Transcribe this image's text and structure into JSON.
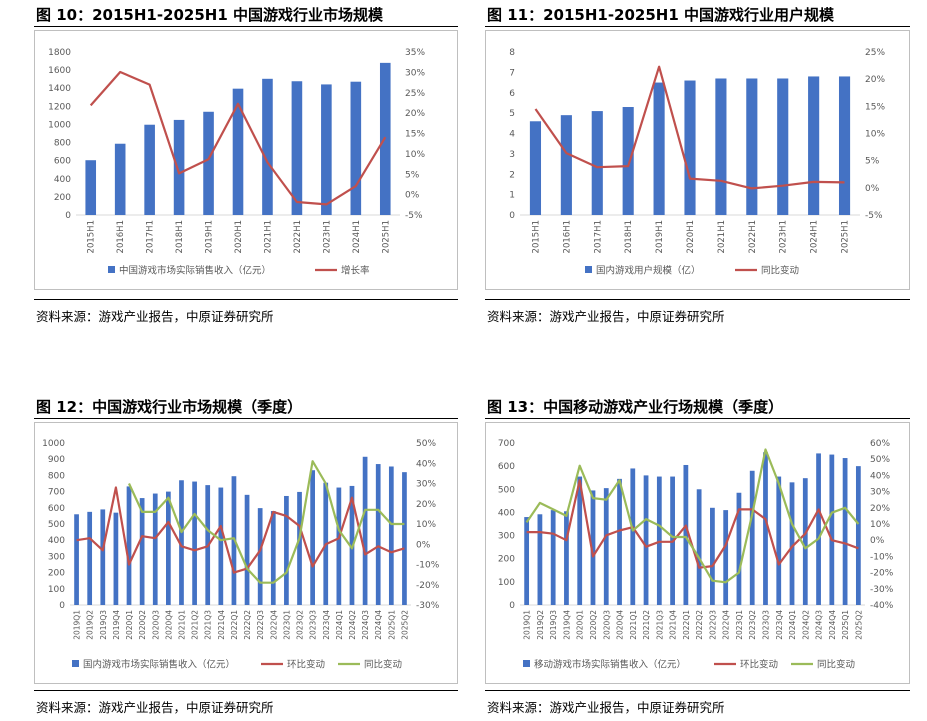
{
  "panels": [
    {
      "title": "图 10：2015H1-2025H1 中国游戏行业市场规模",
      "source": "资料来源：游戏产业报告，中原证券研究所"
    },
    {
      "title": "图 11：2015H1-2025H1 中国游戏行业用户规模",
      "source": "资料来源：游戏产业报告，中原证券研究所"
    },
    {
      "title": "图 12：中国游戏行业市场规模（季度）",
      "source": "资料来源：游戏产业报告，中原证券研究所"
    },
    {
      "title": "图 13：中国移动游戏产业行场规模（季度）",
      "source": "资料来源：游戏产业报告，中原证券研究所"
    }
  ],
  "colors": {
    "bar": "#4472C4",
    "line_red": "#C0504D",
    "line_green": "#9BBB59",
    "axis": "#D9D9D9",
    "frame": "#BFBFBF"
  },
  "chart_data": [
    {
      "type": "bar",
      "categories": [
        "2015H1",
        "2016H1",
        "2017H1",
        "2018H1",
        "2019H1",
        "2020H1",
        "2021H1",
        "2022H1",
        "2023H1",
        "2024H1",
        "2025H1"
      ],
      "series": [
        {
          "name": "中国游戏市场实际销售收入（亿元）",
          "type": "bar",
          "axis": "left",
          "values": [
            605,
            787,
            997,
            1050,
            1140,
            1395,
            1504,
            1477,
            1442,
            1472,
            1680
          ]
        },
        {
          "name": "增长率",
          "type": "line",
          "axis": "right",
          "values": [
            21.9,
            30.1,
            27.0,
            5.2,
            8.7,
            22.3,
            7.9,
            -1.8,
            -2.4,
            2.1,
            14.1
          ]
        }
      ],
      "ylim_left": [
        0,
        1800
      ],
      "yticks_left": [
        "0",
        "200",
        "400",
        "600",
        "800",
        "1000",
        "1200",
        "1400",
        "1600",
        "1800"
      ],
      "ylim_right": [
        -5,
        35
      ],
      "yticks_right": [
        "-5%",
        "0%",
        "5%",
        "10%",
        "15%",
        "20%",
        "25%",
        "30%",
        "35%"
      ],
      "legend": "bottom"
    },
    {
      "type": "bar",
      "categories": [
        "2015H1",
        "2016H1",
        "2017H1",
        "2018H1",
        "2019H1",
        "2020H1",
        "2021H1",
        "2022H1",
        "2023H1",
        "2024H1",
        "2025H1"
      ],
      "series": [
        {
          "name": "国内游戏用户规模（亿）",
          "type": "bar",
          "axis": "left",
          "values": [
            4.6,
            4.9,
            5.1,
            5.3,
            6.5,
            6.6,
            6.7,
            6.7,
            6.7,
            6.8,
            6.8
          ]
        },
        {
          "name": "同比变动",
          "type": "line",
          "axis": "right",
          "values": [
            14.5,
            6.4,
            3.8,
            4.0,
            22.3,
            1.7,
            1.3,
            -0.1,
            0.4,
            1.1,
            1.0
          ]
        }
      ],
      "ylim_left": [
        0,
        8
      ],
      "yticks_left": [
        "0",
        "1",
        "2",
        "3",
        "4",
        "5",
        "6",
        "7",
        "8"
      ],
      "ylim_right": [
        -5,
        25
      ],
      "yticks_right": [
        "-5%",
        "0%",
        "5%",
        "10%",
        "15%",
        "20%",
        "25%"
      ],
      "legend": "bottom"
    },
    {
      "type": "bar",
      "categories": [
        "2019Q1",
        "2019Q2",
        "2019Q3",
        "2019Q4",
        "2020Q1",
        "2020Q2",
        "2020Q3",
        "2020Q4",
        "2021Q1",
        "2021Q2",
        "2021Q3",
        "2021Q4",
        "2022Q1",
        "2022Q2",
        "2022Q3",
        "2022Q4",
        "2023Q1",
        "2023Q2",
        "2023Q3",
        "2023Q4",
        "2024Q1",
        "2024Q2",
        "2024Q3",
        "2024Q4",
        "2025Q1",
        "2025Q2"
      ],
      "series": [
        {
          "name": "国内游戏市场实际销售收入（亿元）",
          "type": "bar",
          "axis": "left",
          "values": [
            560,
            575,
            590,
            570,
            732,
            660,
            688,
            700,
            770,
            762,
            740,
            725,
            795,
            680,
            598,
            580,
            673,
            698,
            832,
            755,
            725,
            735,
            915,
            870,
            855,
            820
          ]
        },
        {
          "name": "环比变动",
          "type": "line",
          "axis": "right",
          "values": [
            2,
            3,
            -3,
            28,
            -10,
            4,
            3,
            11,
            -1,
            -3,
            -1,
            9,
            -14,
            -12,
            -3,
            16,
            14,
            9,
            -11,
            0,
            3,
            23,
            -5,
            -1,
            -4,
            -2
          ]
        },
        {
          "name": "同比变动",
          "type": "line",
          "axis": "right",
          "values": [
            null,
            null,
            null,
            null,
            30,
            16,
            16,
            23,
            6,
            15,
            7,
            2,
            3,
            -12,
            -19,
            -19,
            -14,
            3,
            41,
            30,
            7,
            -2,
            17,
            17,
            10,
            10
          ]
        }
      ],
      "ylim_left": [
        0,
        1000
      ],
      "yticks_left": [
        "0",
        "100",
        "200",
        "300",
        "400",
        "500",
        "600",
        "700",
        "800",
        "900",
        "1000"
      ],
      "ylim_right": [
        -30,
        50
      ],
      "yticks_right": [
        "-30%",
        "-20%",
        "-10%",
        "0%",
        "10%",
        "20%",
        "30%",
        "40%",
        "50%"
      ],
      "legend": "bottom"
    },
    {
      "type": "bar",
      "categories": [
        "2019Q1",
        "2019Q2",
        "2019Q3",
        "2019Q4",
        "2020Q1",
        "2020Q2",
        "2020Q3",
        "2020Q4",
        "2021Q1",
        "2021Q2",
        "2021Q3",
        "2021Q4",
        "2022Q1",
        "2022Q2",
        "2022Q3",
        "2022Q4",
        "2023Q1",
        "2023Q2",
        "2023Q3",
        "2023Q4",
        "2024Q1",
        "2024Q2",
        "2024Q3",
        "2024Q4",
        "2025Q1",
        "2025Q2"
      ],
      "series": [
        {
          "name": "移动游戏市场实际销售收入（亿元）",
          "type": "bar",
          "axis": "left",
          "values": [
            380,
            392,
            410,
            405,
            555,
            495,
            505,
            545,
            590,
            560,
            555,
            555,
            605,
            500,
            420,
            410,
            485,
            580,
            660,
            555,
            530,
            548,
            655,
            650,
            635,
            600
          ]
        },
        {
          "name": "环比变动",
          "type": "line",
          "axis": "right",
          "values": [
            5,
            5,
            4,
            0,
            37,
            -10,
            3,
            6,
            8,
            -4,
            -1,
            -1,
            9,
            -17,
            -16,
            -3,
            19,
            19,
            13,
            -15,
            -4,
            4,
            19,
            0,
            -2,
            -5
          ]
        },
        {
          "name": "同比变动",
          "type": "line",
          "axis": "right",
          "values": [
            11,
            23,
            19,
            15,
            46,
            26,
            25,
            37,
            6,
            13,
            9,
            2,
            2,
            -11,
            -25,
            -26,
            -20,
            16,
            56,
            35,
            10,
            -5,
            1,
            17,
            20,
            10
          ]
        }
      ],
      "ylim_left": [
        0,
        700
      ],
      "yticks_left": [
        "0",
        "100",
        "200",
        "300",
        "400",
        "500",
        "600",
        "700"
      ],
      "ylim_right": [
        -40,
        60
      ],
      "yticks_right": [
        "-40%",
        "-30%",
        "-20%",
        "-10%",
        "0%",
        "10%",
        "20%",
        "30%",
        "40%",
        "50%",
        "60%"
      ],
      "legend": "bottom"
    }
  ]
}
